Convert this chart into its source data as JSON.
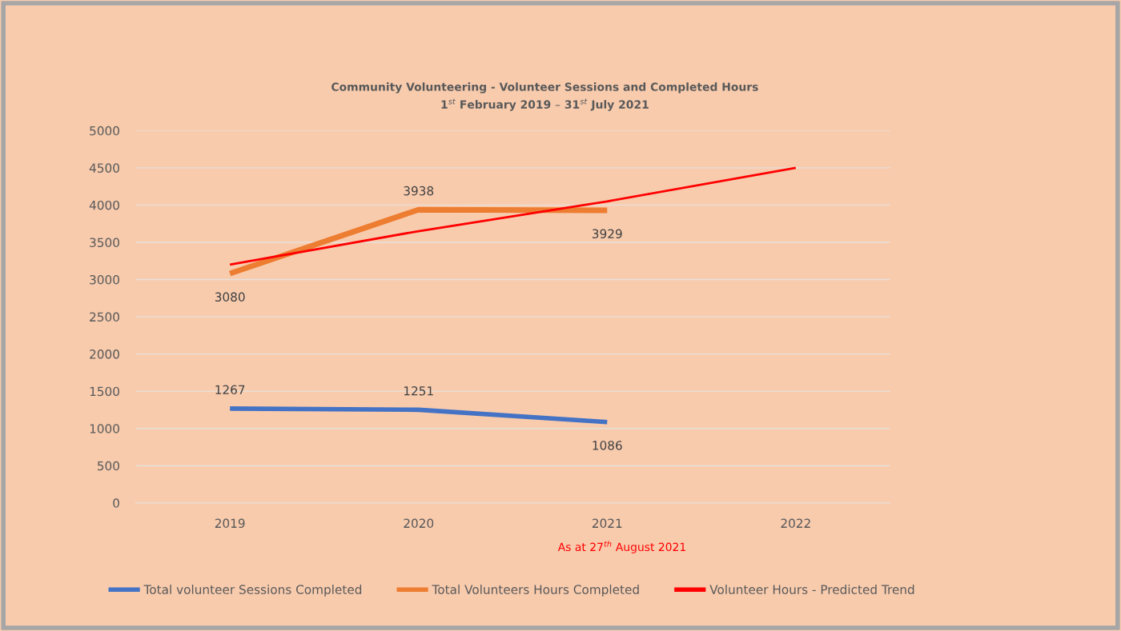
{
  "chart_data": {
    "type": "line",
    "title": "Community Volunteering - Volunteer Sessions and Completed Hours",
    "subtitle": "1$^{st}$ February 2019 – 31$^{st}$ July 2021",
    "categories": [
      "2019",
      "2020",
      "2021",
      "2022"
    ],
    "series": [
      {
        "name": "Total volunteer Sessions Completed",
        "color": "#4472c4",
        "values": [
          1267,
          1251,
          1086,
          null
        ],
        "value_labels": [
          "1267",
          "1251",
          "1086",
          null
        ]
      },
      {
        "name": "Total Volunteers Hours Completed",
        "color": "#ed7d31",
        "values": [
          3080,
          3938,
          3929,
          null
        ],
        "value_labels": [
          "3080",
          "3938",
          "3929",
          null
        ]
      },
      {
        "name": "Volunteer Hours - Predicted Trend",
        "color": "#ff0000",
        "values": [
          3200,
          3650,
          4050,
          4500
        ]
      }
    ],
    "annotations": [
      "As at 27$^{th}$ August 2021"
    ],
    "ylim": [
      0,
      5000
    ],
    "yticks": [
      0,
      500,
      1000,
      1500,
      2000,
      2500,
      3000,
      3500,
      4000,
      4500,
      5000
    ],
    "grid": "y",
    "legend": "bottom",
    "marker": "none",
    "line_style": "solid"
  }
}
